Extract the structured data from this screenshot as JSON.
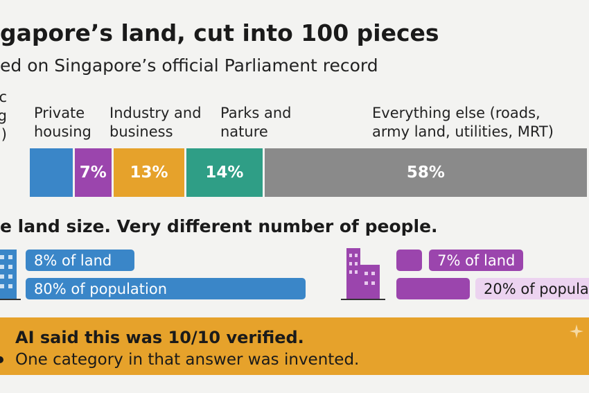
{
  "header": {
    "title": "gapore’s land, cut into 100 pieces",
    "subtitle": "ed on Singapore’s official Parliament record"
  },
  "land_bar": {
    "segments": [
      {
        "label": "c\nng\n)",
        "value": 8,
        "color": "#3a86c8"
      },
      {
        "label": "Private\nhousing",
        "value": 7,
        "value_label": "7%",
        "color": "#9b45ad"
      },
      {
        "label": "Industry and\nbusiness",
        "value": 13,
        "value_label": "13%",
        "color": "#e6a22b"
      },
      {
        "label": "Parks and\nnature",
        "value": 14,
        "value_label": "14%",
        "color": "#2f9e86"
      },
      {
        "label": "Everything else (roads,\narmy land, utilities, MRT)",
        "value": 58,
        "value_label": "58%",
        "color": "#8a8a8a"
      }
    ]
  },
  "comparison": {
    "title": "e land size. Very different number of people.",
    "groups": [
      {
        "color": "#3a86c8",
        "bars": [
          {
            "value": 8,
            "value_label": "8% of land"
          },
          {
            "value": 80,
            "value_label": "80% of population"
          }
        ]
      },
      {
        "color": "#9b45ad",
        "bars": [
          {
            "value": 7,
            "value_label": "7% of land"
          },
          {
            "value": 20,
            "value_label": "20% of popula"
          }
        ]
      }
    ]
  },
  "banner": {
    "headline": "AI said this was 10/10 verified.",
    "bullet": "One category in that answer was invented."
  }
}
